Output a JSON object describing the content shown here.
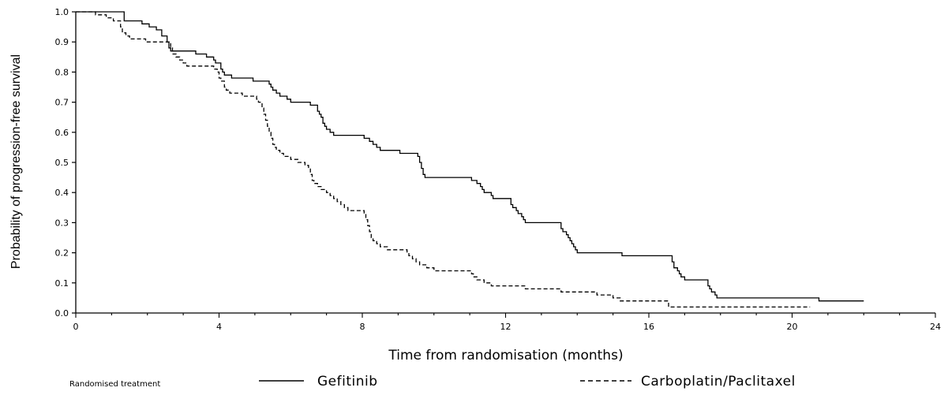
{
  "chart_data": {
    "type": "line",
    "title": "",
    "xlabel": "Time from randomisation (months)",
    "ylabel": "Probability of progression-free survival",
    "xlim": [
      0,
      24
    ],
    "ylim": [
      0,
      1.0
    ],
    "x_ticks": [
      0,
      4,
      8,
      12,
      16,
      20,
      24
    ],
    "y_ticks": [
      0.0,
      0.1,
      0.2,
      0.3,
      0.4,
      0.5,
      0.6,
      0.7,
      0.8,
      0.9,
      1.0
    ],
    "x_tick_labels": [
      "0",
      "4",
      "8",
      "12",
      "16",
      "20",
      "24"
    ],
    "y_tick_labels": [
      "0.0",
      "0.1",
      "0.2",
      "0.3",
      "0.4",
      "0.5",
      "0.6",
      "0.7",
      "0.8",
      "0.9",
      "1.0"
    ],
    "grid": false,
    "legend": {
      "title": "Randomised treatment",
      "placement": "bottom"
    },
    "series": [
      {
        "name": "Gefitinib",
        "line_style": "solid",
        "color": "#000000",
        "points": [
          [
            0,
            1.0
          ],
          [
            1.3,
            1.0
          ],
          [
            1.35,
            0.97
          ],
          [
            1.8,
            0.97
          ],
          [
            1.85,
            0.96
          ],
          [
            2.0,
            0.96
          ],
          [
            2.05,
            0.95
          ],
          [
            2.2,
            0.95
          ],
          [
            2.25,
            0.94
          ],
          [
            2.35,
            0.94
          ],
          [
            2.4,
            0.92
          ],
          [
            2.5,
            0.92
          ],
          [
            2.55,
            0.9
          ],
          [
            2.6,
            0.88
          ],
          [
            2.65,
            0.87
          ],
          [
            3.3,
            0.87
          ],
          [
            3.35,
            0.86
          ],
          [
            3.6,
            0.86
          ],
          [
            3.65,
            0.85
          ],
          [
            3.8,
            0.85
          ],
          [
            3.85,
            0.84
          ],
          [
            3.9,
            0.83
          ],
          [
            4.0,
            0.83
          ],
          [
            4.05,
            0.81
          ],
          [
            4.1,
            0.8
          ],
          [
            4.15,
            0.79
          ],
          [
            4.3,
            0.79
          ],
          [
            4.35,
            0.78
          ],
          [
            4.9,
            0.78
          ],
          [
            4.95,
            0.77
          ],
          [
            5.35,
            0.77
          ],
          [
            5.4,
            0.76
          ],
          [
            5.45,
            0.75
          ],
          [
            5.5,
            0.74
          ],
          [
            5.6,
            0.73
          ],
          [
            5.7,
            0.72
          ],
          [
            5.9,
            0.71
          ],
          [
            6.0,
            0.7
          ],
          [
            6.5,
            0.7
          ],
          [
            6.55,
            0.69
          ],
          [
            6.7,
            0.69
          ],
          [
            6.75,
            0.67
          ],
          [
            6.8,
            0.66
          ],
          [
            6.85,
            0.65
          ],
          [
            6.9,
            0.63
          ],
          [
            6.95,
            0.62
          ],
          [
            7.0,
            0.61
          ],
          [
            7.1,
            0.6
          ],
          [
            7.2,
            0.59
          ],
          [
            8.0,
            0.59
          ],
          [
            8.05,
            0.58
          ],
          [
            8.2,
            0.57
          ],
          [
            8.3,
            0.56
          ],
          [
            8.4,
            0.55
          ],
          [
            8.5,
            0.54
          ],
          [
            9.0,
            0.54
          ],
          [
            9.05,
            0.53
          ],
          [
            9.5,
            0.53
          ],
          [
            9.55,
            0.52
          ],
          [
            9.6,
            0.5
          ],
          [
            9.65,
            0.48
          ],
          [
            9.7,
            0.46
          ],
          [
            9.75,
            0.45
          ],
          [
            11.0,
            0.45
          ],
          [
            11.05,
            0.44
          ],
          [
            11.2,
            0.43
          ],
          [
            11.3,
            0.42
          ],
          [
            11.35,
            0.41
          ],
          [
            11.4,
            0.4
          ],
          [
            11.6,
            0.39
          ],
          [
            11.65,
            0.38
          ],
          [
            12.1,
            0.38
          ],
          [
            12.15,
            0.36
          ],
          [
            12.2,
            0.35
          ],
          [
            12.3,
            0.34
          ],
          [
            12.35,
            0.33
          ],
          [
            12.45,
            0.32
          ],
          [
            12.5,
            0.31
          ],
          [
            12.55,
            0.3
          ],
          [
            13.5,
            0.3
          ],
          [
            13.55,
            0.28
          ],
          [
            13.6,
            0.27
          ],
          [
            13.7,
            0.26
          ],
          [
            13.75,
            0.25
          ],
          [
            13.8,
            0.24
          ],
          [
            13.85,
            0.23
          ],
          [
            13.9,
            0.22
          ],
          [
            13.95,
            0.21
          ],
          [
            14.0,
            0.2
          ],
          [
            15.2,
            0.2
          ],
          [
            15.25,
            0.19
          ],
          [
            16.6,
            0.19
          ],
          [
            16.65,
            0.17
          ],
          [
            16.7,
            0.15
          ],
          [
            16.8,
            0.14
          ],
          [
            16.85,
            0.13
          ],
          [
            16.9,
            0.12
          ],
          [
            17.0,
            0.11
          ],
          [
            17.6,
            0.11
          ],
          [
            17.65,
            0.09
          ],
          [
            17.7,
            0.08
          ],
          [
            17.75,
            0.07
          ],
          [
            17.85,
            0.06
          ],
          [
            17.9,
            0.05
          ],
          [
            20.7,
            0.05
          ],
          [
            20.75,
            0.04
          ],
          [
            22.0,
            0.04
          ]
        ]
      },
      {
        "name": "Carboplatin/Paclitaxel",
        "line_style": "dashed",
        "color": "#000000",
        "points": [
          [
            0,
            1.0
          ],
          [
            0.5,
            1.0
          ],
          [
            0.55,
            0.99
          ],
          [
            0.8,
            0.99
          ],
          [
            0.85,
            0.98
          ],
          [
            1.0,
            0.98
          ],
          [
            1.05,
            0.97
          ],
          [
            1.2,
            0.97
          ],
          [
            1.25,
            0.95
          ],
          [
            1.3,
            0.93
          ],
          [
            1.4,
            0.92
          ],
          [
            1.5,
            0.91
          ],
          [
            1.9,
            0.91
          ],
          [
            1.95,
            0.9
          ],
          [
            2.6,
            0.9
          ],
          [
            2.65,
            0.88
          ],
          [
            2.7,
            0.86
          ],
          [
            2.8,
            0.85
          ],
          [
            2.9,
            0.84
          ],
          [
            3.0,
            0.83
          ],
          [
            3.1,
            0.82
          ],
          [
            3.8,
            0.82
          ],
          [
            3.85,
            0.81
          ],
          [
            3.95,
            0.8
          ],
          [
            4.0,
            0.78
          ],
          [
            4.05,
            0.77
          ],
          [
            4.15,
            0.75
          ],
          [
            4.2,
            0.74
          ],
          [
            4.3,
            0.73
          ],
          [
            4.6,
            0.73
          ],
          [
            4.65,
            0.72
          ],
          [
            5.0,
            0.72
          ],
          [
            5.05,
            0.71
          ],
          [
            5.1,
            0.7
          ],
          [
            5.2,
            0.68
          ],
          [
            5.25,
            0.66
          ],
          [
            5.3,
            0.64
          ],
          [
            5.35,
            0.62
          ],
          [
            5.4,
            0.6
          ],
          [
            5.45,
            0.58
          ],
          [
            5.5,
            0.56
          ],
          [
            5.55,
            0.55
          ],
          [
            5.6,
            0.54
          ],
          [
            5.7,
            0.53
          ],
          [
            5.8,
            0.52
          ],
          [
            6.0,
            0.51
          ],
          [
            6.2,
            0.5
          ],
          [
            6.4,
            0.49
          ],
          [
            6.5,
            0.48
          ],
          [
            6.55,
            0.46
          ],
          [
            6.6,
            0.44
          ],
          [
            6.65,
            0.43
          ],
          [
            6.75,
            0.42
          ],
          [
            6.85,
            0.41
          ],
          [
            7.0,
            0.4
          ],
          [
            7.1,
            0.39
          ],
          [
            7.2,
            0.38
          ],
          [
            7.3,
            0.37
          ],
          [
            7.4,
            0.36
          ],
          [
            7.5,
            0.35
          ],
          [
            7.6,
            0.34
          ],
          [
            8.0,
            0.34
          ],
          [
            8.05,
            0.33
          ],
          [
            8.1,
            0.31
          ],
          [
            8.15,
            0.29
          ],
          [
            8.2,
            0.27
          ],
          [
            8.25,
            0.25
          ],
          [
            8.3,
            0.24
          ],
          [
            8.4,
            0.23
          ],
          [
            8.5,
            0.22
          ],
          [
            8.7,
            0.21
          ],
          [
            9.2,
            0.21
          ],
          [
            9.25,
            0.2
          ],
          [
            9.3,
            0.19
          ],
          [
            9.4,
            0.18
          ],
          [
            9.5,
            0.17
          ],
          [
            9.6,
            0.16
          ],
          [
            9.8,
            0.15
          ],
          [
            10.0,
            0.14
          ],
          [
            11.0,
            0.14
          ],
          [
            11.05,
            0.13
          ],
          [
            11.1,
            0.12
          ],
          [
            11.2,
            0.11
          ],
          [
            11.4,
            0.1
          ],
          [
            11.6,
            0.09
          ],
          [
            12.5,
            0.09
          ],
          [
            12.55,
            0.08
          ],
          [
            13.5,
            0.08
          ],
          [
            13.55,
            0.07
          ],
          [
            14.5,
            0.07
          ],
          [
            14.55,
            0.06
          ],
          [
            14.9,
            0.06
          ],
          [
            15.0,
            0.05
          ],
          [
            15.2,
            0.04
          ],
          [
            16.5,
            0.04
          ],
          [
            16.55,
            0.02
          ],
          [
            20.5,
            0.02
          ]
        ]
      }
    ]
  }
}
